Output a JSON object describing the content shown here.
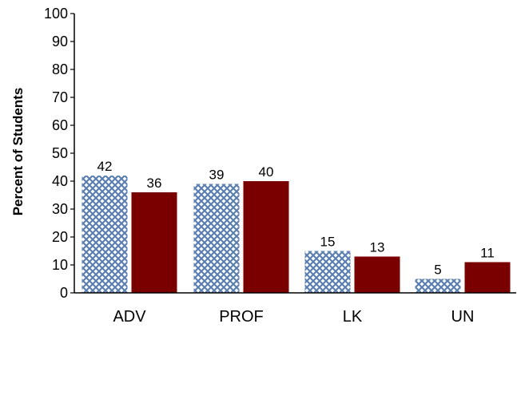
{
  "chart_data": {
    "type": "bar",
    "title": "",
    "xlabel": "",
    "ylabel": "Percent of Students",
    "ylim": [
      0,
      100
    ],
    "yticks": [
      0,
      10,
      20,
      30,
      40,
      50,
      60,
      70,
      80,
      90,
      100
    ],
    "categories": [
      "ADV",
      "PROF",
      "LK",
      "UN"
    ],
    "grid": false,
    "legend": "none",
    "series": [
      {
        "values": [
          42,
          39,
          15,
          5
        ],
        "color": "#5b7fb0",
        "pattern": "crosshatch"
      },
      {
        "values": [
          36,
          40,
          13,
          11
        ],
        "color": "#7a0000",
        "pattern": "solid"
      }
    ]
  }
}
